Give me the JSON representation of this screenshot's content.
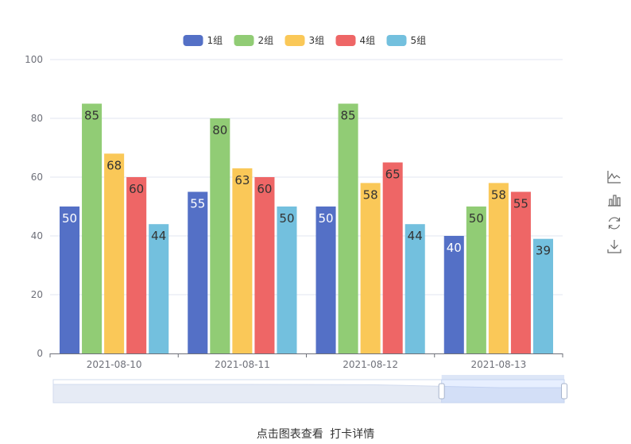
{
  "chart_data": {
    "type": "bar",
    "categories": [
      "2021-08-10",
      "2021-08-11",
      "2021-08-12",
      "2021-08-13"
    ],
    "series": [
      {
        "name": "1组",
        "color": "#5470c6",
        "values": [
          50,
          55,
          50,
          40
        ]
      },
      {
        "name": "2组",
        "color": "#91cc75",
        "values": [
          85,
          80,
          85,
          50
        ]
      },
      {
        "name": "3组",
        "color": "#fac858",
        "values": [
          68,
          63,
          58,
          58
        ]
      },
      {
        "name": "4组",
        "color": "#ee6666",
        "values": [
          60,
          60,
          65,
          55
        ]
      },
      {
        "name": "5组",
        "color": "#73c0de",
        "values": [
          44,
          50,
          44,
          39
        ]
      }
    ],
    "ylim": [
      0,
      100
    ],
    "yticks": [
      0,
      20,
      40,
      60,
      80,
      100
    ],
    "grid": true,
    "legend": "top-center",
    "data_labels": true,
    "datazoom": {
      "start": 0.76,
      "end": 1.0
    }
  },
  "toolbox": {
    "icons": [
      "line-chart-icon",
      "bar-chart-icon",
      "restore-icon",
      "download-icon"
    ]
  },
  "caption": {
    "text1": "点击图表查看",
    "text2": "打卡详情"
  }
}
